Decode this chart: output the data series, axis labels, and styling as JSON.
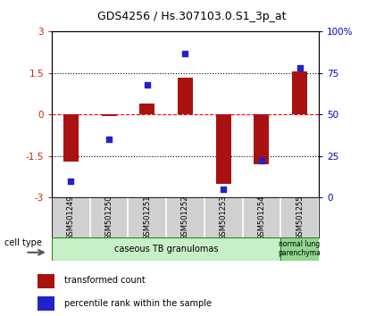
{
  "title": "GDS4256 / Hs.307103.0.S1_3p_at",
  "samples": [
    "GSM501249",
    "GSM501250",
    "GSM501251",
    "GSM501252",
    "GSM501253",
    "GSM501254",
    "GSM501255"
  ],
  "transformed_count": [
    -1.7,
    -0.05,
    0.4,
    1.35,
    -2.5,
    -1.8,
    1.55
  ],
  "percentile_rank": [
    10,
    35,
    68,
    87,
    5,
    22,
    78
  ],
  "bar_color": "#aa1111",
  "dot_color": "#2222cc",
  "ylim_left": [
    -3,
    3
  ],
  "ylim_right": [
    0,
    100
  ],
  "yticks_left": [
    -3,
    -1.5,
    0,
    1.5,
    3
  ],
  "yticks_right": [
    0,
    25,
    50,
    75,
    100
  ],
  "ytick_labels_right": [
    "0",
    "25",
    "50",
    "75",
    "100%"
  ],
  "group1_label": "caseous TB granulomas",
  "group2_label": "normal lung\nparenchyma",
  "group1_color": "#c8f0c8",
  "group2_color": "#90d890",
  "sample_box_color": "#d0d0d0",
  "cell_type_label": "cell type",
  "legend_bar_label": "transformed count",
  "legend_dot_label": "percentile rank within the sample",
  "bg_color": "#ffffff",
  "tick_label_color_left": "#cc2200",
  "tick_label_color_right": "#0000cc",
  "bar_width": 0.4
}
